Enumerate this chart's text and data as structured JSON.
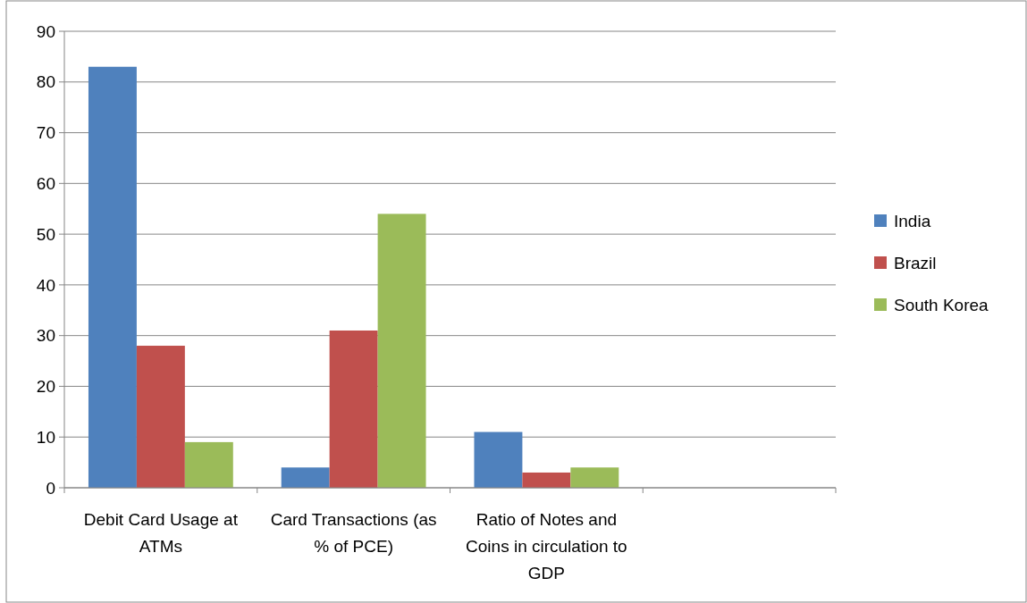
{
  "chart_data": {
    "type": "bar",
    "categories": [
      "Debit Card Usage at ATMs",
      "Card Transactions (as % of PCE)",
      "Ratio of Notes and Coins in circulation to GDP",
      null
    ],
    "series": [
      {
        "name": "India",
        "color": "#4f81bd",
        "values": [
          83,
          4,
          11,
          null
        ]
      },
      {
        "name": "Brazil",
        "color": "#c0504d",
        "values": [
          28,
          31,
          3,
          null
        ]
      },
      {
        "name": "South Korea",
        "color": "#9bbb59",
        "values": [
          9,
          54,
          4,
          null
        ]
      }
    ],
    "ylim": [
      0,
      90
    ],
    "yticks": [
      0,
      10,
      20,
      30,
      40,
      50,
      60,
      70,
      80,
      90
    ],
    "grid": "y",
    "legend": "right"
  }
}
